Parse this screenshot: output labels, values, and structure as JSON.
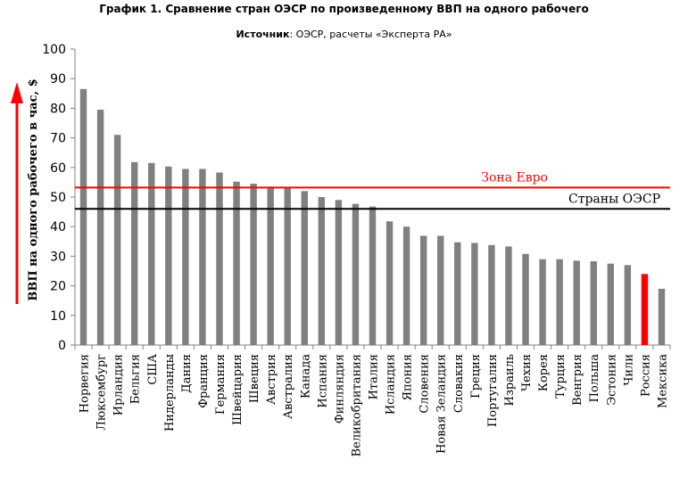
{
  "title": "График 1. Сравнение стран ОЭСР по произведенному ВВП на одного рабочего",
  "source_label": "Источник",
  "source_text": ": ОЭСР, расчеты «Эксперта РА»",
  "chart_data": {
    "type": "bar",
    "ylabel": "ВВП на одного рабочего в час, $",
    "ylim": [
      0,
      100
    ],
    "yticks": [
      0,
      10,
      20,
      30,
      40,
      50,
      60,
      70,
      80,
      90,
      100
    ],
    "grid": false,
    "categories": [
      "Норвегия",
      "Люксембург",
      "Ирландия",
      "Бельгия",
      "США",
      "Нидерланды",
      "Дания",
      "Франция",
      "Германия",
      "Швейцария",
      "Швеция",
      "Австрия",
      "Австралия",
      "Канада",
      "Испания",
      "Финляндия",
      "Великобритания",
      "Италия",
      "Исландия",
      "Япония",
      "Словения",
      "Новая Зеландия",
      "Словакия",
      "Греция",
      "Португалия",
      "Израиль",
      "Чехия",
      "Корея",
      "Турция",
      "Венгрия",
      "Польша",
      "Эстония",
      "Чили",
      "Россия",
      "Мексика"
    ],
    "values": [
      86.5,
      79.5,
      71,
      61.8,
      61.5,
      60.3,
      59.5,
      59.5,
      58.3,
      55.2,
      54.5,
      53.5,
      53,
      52,
      50,
      49,
      47.7,
      46.8,
      41.8,
      40,
      36.9,
      36.9,
      34.7,
      34.5,
      33.8,
      33.3,
      30.8,
      29,
      29,
      28.5,
      28.3,
      27.5,
      27,
      24,
      19
    ],
    "colors": {
      "bar": "#808080",
      "highlight": "#ff0000",
      "eurozone_line": "#ff0000",
      "oecd_line": "#000000"
    },
    "highlight_category": "Россия",
    "reference_lines": [
      {
        "name": "Зона Евро",
        "value": 53.2,
        "color": "#ff0000"
      },
      {
        "name": "Страны ОЭСР",
        "value": 46,
        "color": "#000000"
      }
    ]
  }
}
